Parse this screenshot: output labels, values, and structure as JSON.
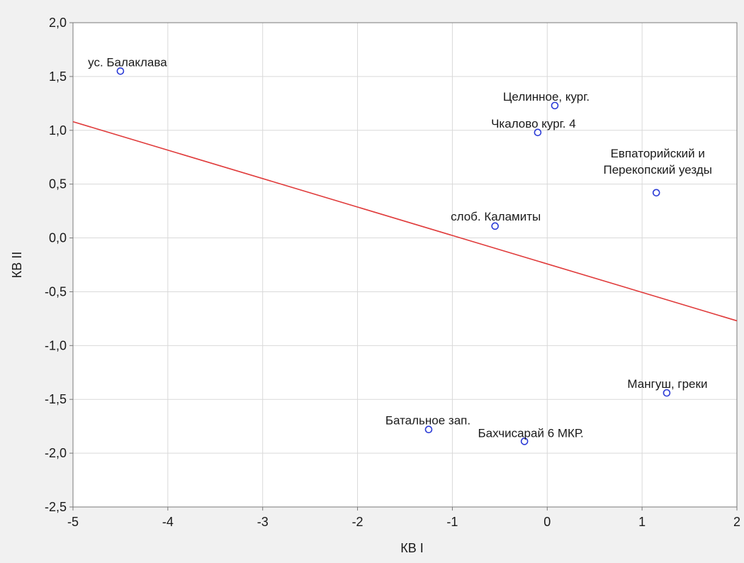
{
  "chart_data": {
    "type": "scatter",
    "title": "",
    "xlabel": "КВ I",
    "ylabel": "КВ II",
    "xlim": [
      -5,
      2
    ],
    "ylim": [
      -2.5,
      2.0
    ],
    "grid": true,
    "x_ticks": [
      -5,
      -4,
      -3,
      -2,
      -1,
      0,
      1,
      2
    ],
    "y_ticks": [
      -2.5,
      -2.0,
      -1.5,
      -1.0,
      -0.5,
      0.0,
      0.5,
      1.0,
      1.5,
      2.0
    ],
    "x_tick_labels": [
      "-5",
      "-4",
      "-3",
      "-2",
      "-1",
      "0",
      "1",
      "2"
    ],
    "y_tick_labels": [
      "-2,5",
      "-2,0",
      "-1,5",
      "-1,0",
      "-0,5",
      "0,0",
      "0,5",
      "1,0",
      "1,5",
      "2,0"
    ],
    "colors": {
      "marker": "#2b3bd6",
      "line": "#e03a3a",
      "grid": "#d9d9d9",
      "axis": "#7a7a7a"
    },
    "points": [
      {
        "label": "ус. Балаклава",
        "x": -4.5,
        "y": 1.55
      },
      {
        "label": "Целинное, кург.",
        "x": 0.08,
        "y": 1.23
      },
      {
        "label": "Чкалово кург. 4",
        "x": -0.1,
        "y": 0.98
      },
      {
        "label": "Евпаторийский и\nПерекопский уезды",
        "x": 1.15,
        "y": 0.42
      },
      {
        "label": "слоб. Каламиты",
        "x": -0.55,
        "y": 0.11
      },
      {
        "label": "Мангуш, греки",
        "x": 1.26,
        "y": -1.44
      },
      {
        "label": "Батальное зап.",
        "x": -1.25,
        "y": -1.78
      },
      {
        "label": "Бахчисарай 6 МКР.",
        "x": -0.24,
        "y": -1.89
      }
    ],
    "regression_line": {
      "x": [
        -5,
        2
      ],
      "y": [
        1.08,
        -0.77
      ]
    }
  }
}
